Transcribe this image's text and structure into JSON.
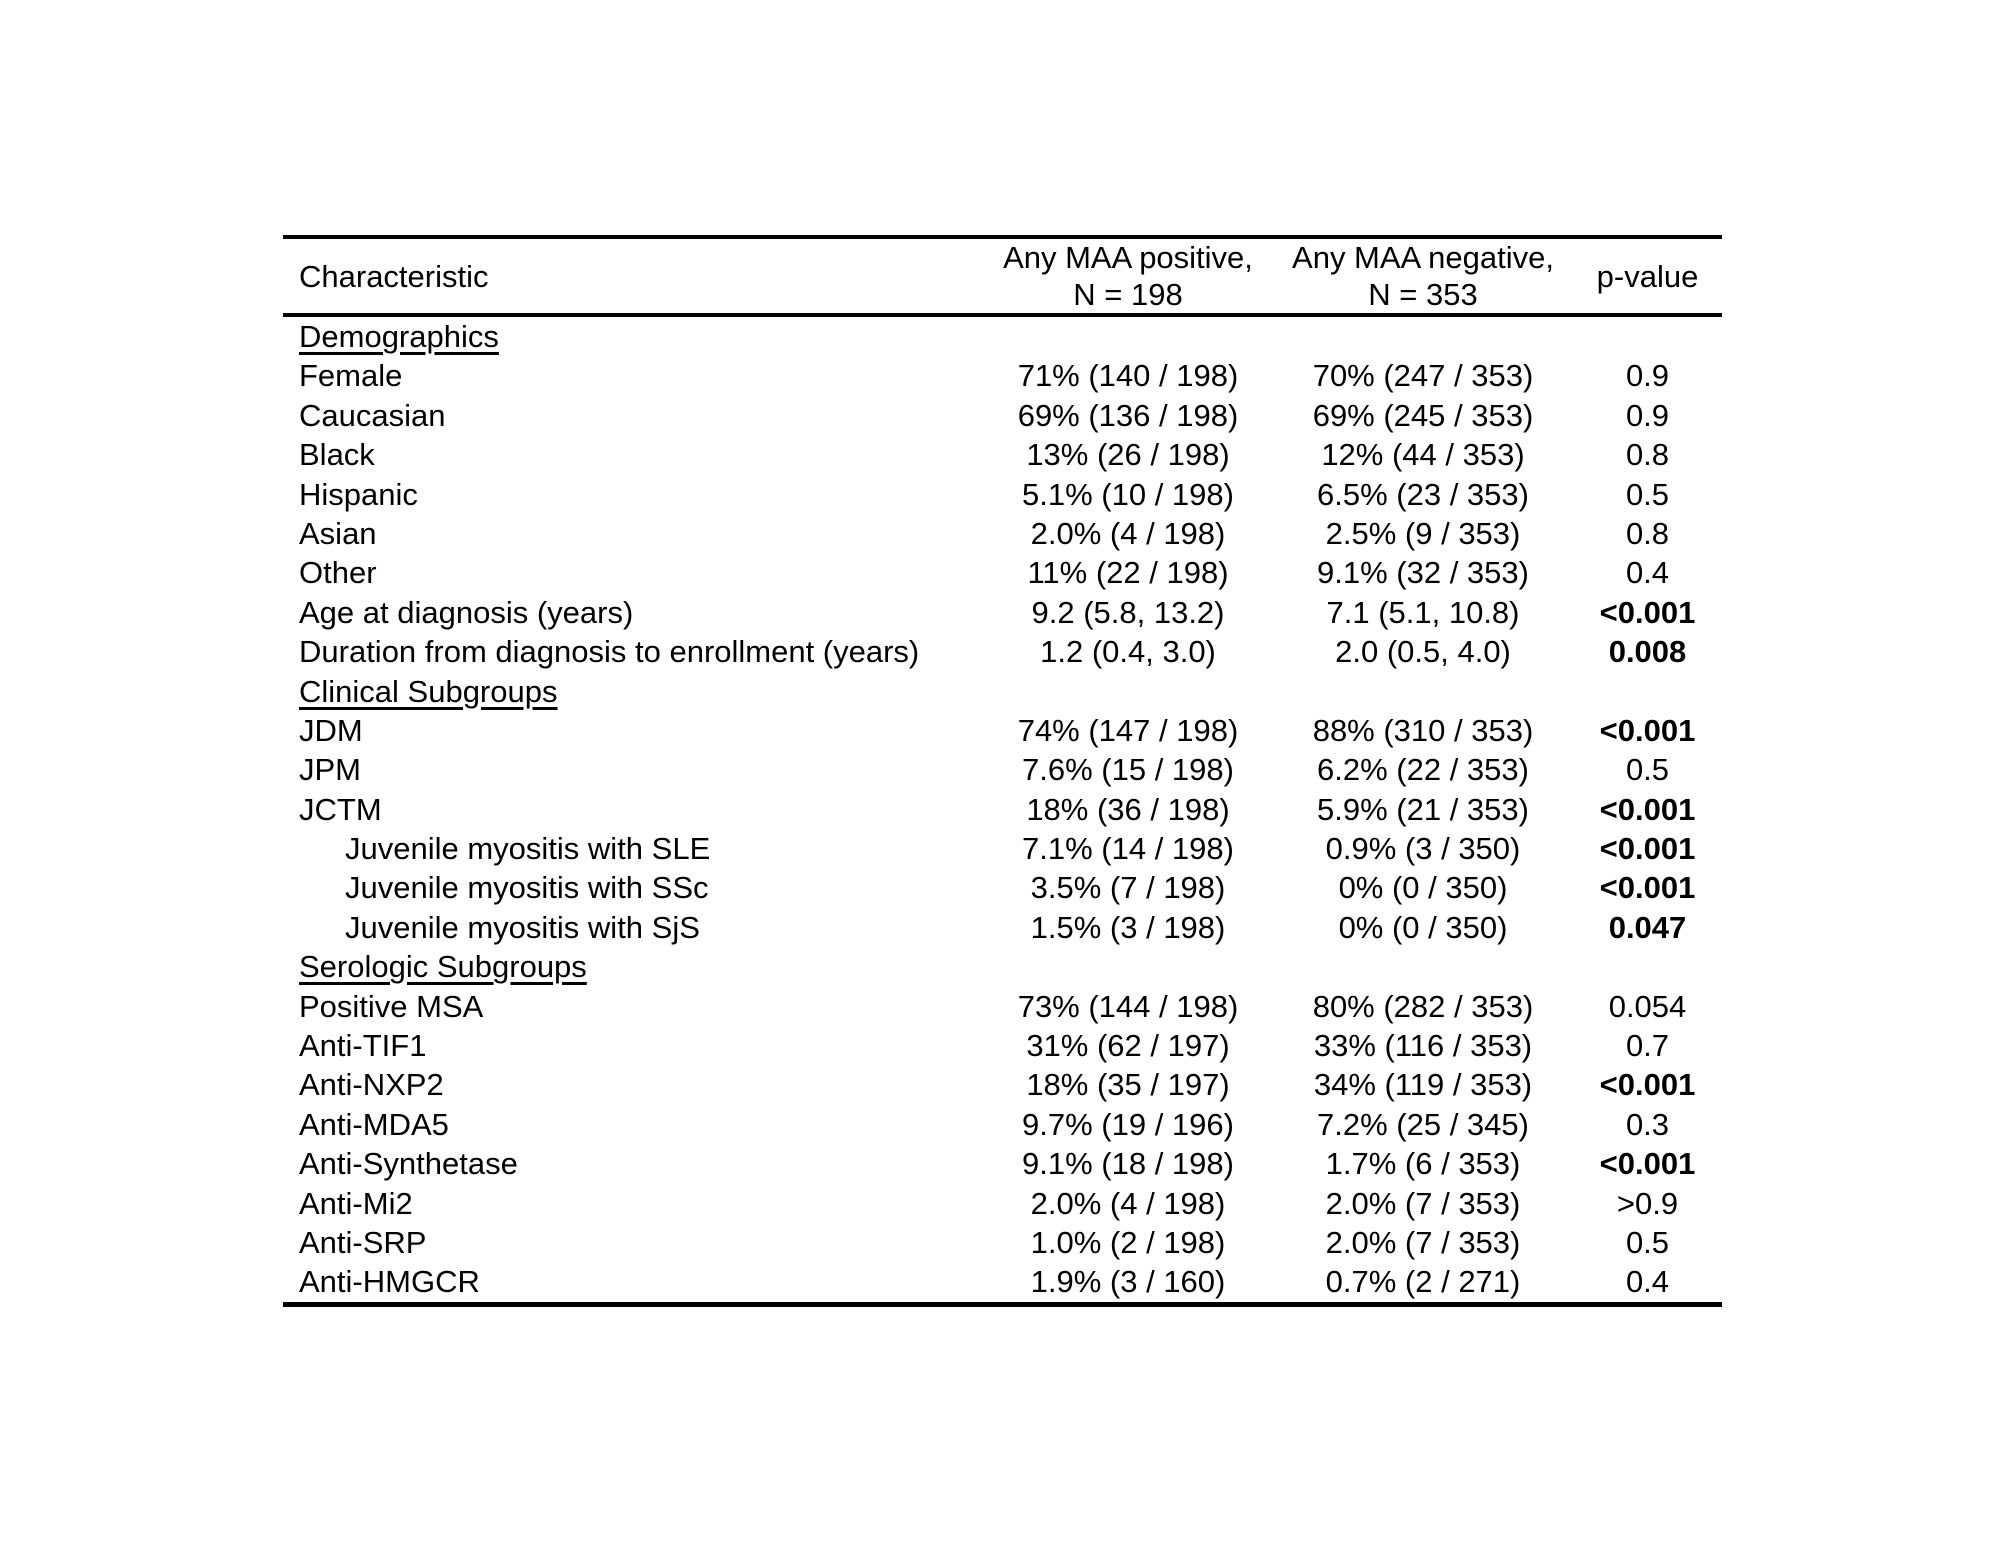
{
  "page": {
    "background_color": "#ffffff",
    "text_color": "#000000",
    "rule_color": "#000000"
  },
  "table": {
    "header": {
      "characteristic": "Characteristic",
      "maa_positive_line1": "Any MAA positive,",
      "maa_positive_line2": "N = 198",
      "maa_negative_line1": "Any MAA negative,",
      "maa_negative_line2": "N = 353",
      "p_value": "p-value"
    },
    "rows": [
      {
        "type": "section",
        "label": "Demographics"
      },
      {
        "type": "data",
        "label": "Female",
        "indent": false,
        "maa_positive": "71% (140 / 198)",
        "maa_negative": "70% (247 / 353)",
        "p_value": "0.9",
        "p_bold": false
      },
      {
        "type": "data",
        "label": "Caucasian",
        "indent": false,
        "maa_positive": "69% (136 / 198)",
        "maa_negative": "69% (245 / 353)",
        "p_value": "0.9",
        "p_bold": false
      },
      {
        "type": "data",
        "label": "Black",
        "indent": false,
        "maa_positive": "13% (26 / 198)",
        "maa_negative": "12% (44 / 353)",
        "p_value": "0.8",
        "p_bold": false
      },
      {
        "type": "data",
        "label": "Hispanic",
        "indent": false,
        "maa_positive": "5.1% (10 / 198)",
        "maa_negative": "6.5% (23 / 353)",
        "p_value": "0.5",
        "p_bold": false
      },
      {
        "type": "data",
        "label": "Asian",
        "indent": false,
        "maa_positive": "2.0% (4 / 198)",
        "maa_negative": "2.5% (9 / 353)",
        "p_value": "0.8",
        "p_bold": false
      },
      {
        "type": "data",
        "label": "Other",
        "indent": false,
        "maa_positive": "11% (22 / 198)",
        "maa_negative": "9.1% (32 / 353)",
        "p_value": "0.4",
        "p_bold": false
      },
      {
        "type": "data",
        "label": "Age at diagnosis (years)",
        "indent": false,
        "maa_positive": "9.2 (5.8, 13.2)",
        "maa_negative": "7.1 (5.1, 10.8)",
        "p_value": "<0.001",
        "p_bold": true
      },
      {
        "type": "data",
        "label": "Duration from diagnosis to enrollment (years)",
        "indent": false,
        "maa_positive": "1.2 (0.4, 3.0)",
        "maa_negative": "2.0 (0.5, 4.0)",
        "p_value": "0.008",
        "p_bold": true
      },
      {
        "type": "section",
        "label": "Clinical Subgroups"
      },
      {
        "type": "data",
        "label": "JDM",
        "indent": false,
        "maa_positive": "74% (147 / 198)",
        "maa_negative": "88% (310 / 353)",
        "p_value": "<0.001",
        "p_bold": true
      },
      {
        "type": "data",
        "label": "JPM",
        "indent": false,
        "maa_positive": "7.6% (15 / 198)",
        "maa_negative": "6.2% (22 / 353)",
        "p_value": "0.5",
        "p_bold": false
      },
      {
        "type": "data",
        "label": "JCTM",
        "indent": false,
        "maa_positive": "18% (36 / 198)",
        "maa_negative": "5.9% (21 / 353)",
        "p_value": "<0.001",
        "p_bold": true
      },
      {
        "type": "data",
        "label": "Juvenile myositis with SLE",
        "indent": true,
        "maa_positive": "7.1% (14 / 198)",
        "maa_negative": "0.9% (3 / 350)",
        "p_value": "<0.001",
        "p_bold": true
      },
      {
        "type": "data",
        "label": "Juvenile myositis with SSc",
        "indent": true,
        "maa_positive": "3.5% (7 / 198)",
        "maa_negative": "0% (0 / 350)",
        "p_value": "<0.001",
        "p_bold": true
      },
      {
        "type": "data",
        "label": "Juvenile myositis with SjS",
        "indent": true,
        "maa_positive": "1.5% (3 / 198)",
        "maa_negative": "0% (0 / 350)",
        "p_value": "0.047",
        "p_bold": true
      },
      {
        "type": "section",
        "label": "Serologic Subgroups"
      },
      {
        "type": "data",
        "label": "Positive MSA",
        "indent": false,
        "maa_positive": "73% (144 / 198)",
        "maa_negative": "80% (282 / 353)",
        "p_value": "0.054",
        "p_bold": false
      },
      {
        "type": "data",
        "label": "Anti-TIF1",
        "indent": false,
        "maa_positive": "31% (62 / 197)",
        "maa_negative": "33% (116 / 353)",
        "p_value": "0.7",
        "p_bold": false
      },
      {
        "type": "data",
        "label": "Anti-NXP2",
        "indent": false,
        "maa_positive": "18% (35 / 197)",
        "maa_negative": "34% (119 / 353)",
        "p_value": "<0.001",
        "p_bold": true
      },
      {
        "type": "data",
        "label": "Anti-MDA5",
        "indent": false,
        "maa_positive": "9.7% (19 / 196)",
        "maa_negative": "7.2% (25 / 345)",
        "p_value": "0.3",
        "p_bold": false
      },
      {
        "type": "data",
        "label": "Anti-Synthetase",
        "indent": false,
        "maa_positive": "9.1% (18 / 198)",
        "maa_negative": "1.7% (6 / 353)",
        "p_value": "<0.001",
        "p_bold": true
      },
      {
        "type": "data",
        "label": "Anti-Mi2",
        "indent": false,
        "maa_positive": "2.0% (4 / 198)",
        "maa_negative": "2.0% (7 / 353)",
        "p_value": ">0.9",
        "p_bold": false
      },
      {
        "type": "data",
        "label": "Anti-SRP",
        "indent": false,
        "maa_positive": "1.0% (2 / 198)",
        "maa_negative": "2.0% (7 / 353)",
        "p_value": "0.5",
        "p_bold": false
      },
      {
        "type": "data",
        "label": "Anti-HMGCR",
        "indent": false,
        "maa_positive": "1.9% (3 / 160)",
        "maa_negative": "0.7% (2 / 271)",
        "p_value": "0.4",
        "p_bold": false
      }
    ]
  }
}
